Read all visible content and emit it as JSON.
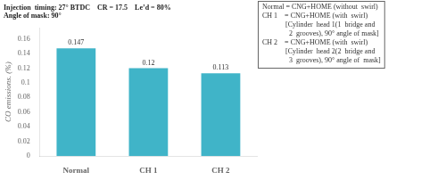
{
  "chart_data": {
    "type": "bar",
    "title": [
      "Injection  timing: 27° BTDC    CR = 17.5    Le’d = 80%",
      "Angle of mask: 90°"
    ],
    "annotations": [
      "Normal = CNG+HOME (without  swirl)",
      "CH 1    = CNG+HOME (with  swirl)",
      "             [Cylinder  head 1(1  bridge and",
      "               2  grooves), 90° angle of mask]",
      "CH 2    = CNG+HOME (with  swirl)",
      "             [Cylinder  head 2(2  bridge and",
      "               3  grooves), 90° angle of  mask]"
    ],
    "y_label": "CO emissions. (%)",
    "categories": [
      "Normal",
      "CH 1",
      "CH 2"
    ],
    "values": [
      0.147,
      0.12,
      0.113
    ],
    "color": "#40b4c8",
    "ylim": [
      0,
      0.175
    ],
    "yticks": [
      0,
      0.02,
      0.04,
      0.06,
      0.08,
      0.1,
      0.12,
      0.14,
      0.16
    ],
    "grid": false,
    "data_labels": true
  }
}
